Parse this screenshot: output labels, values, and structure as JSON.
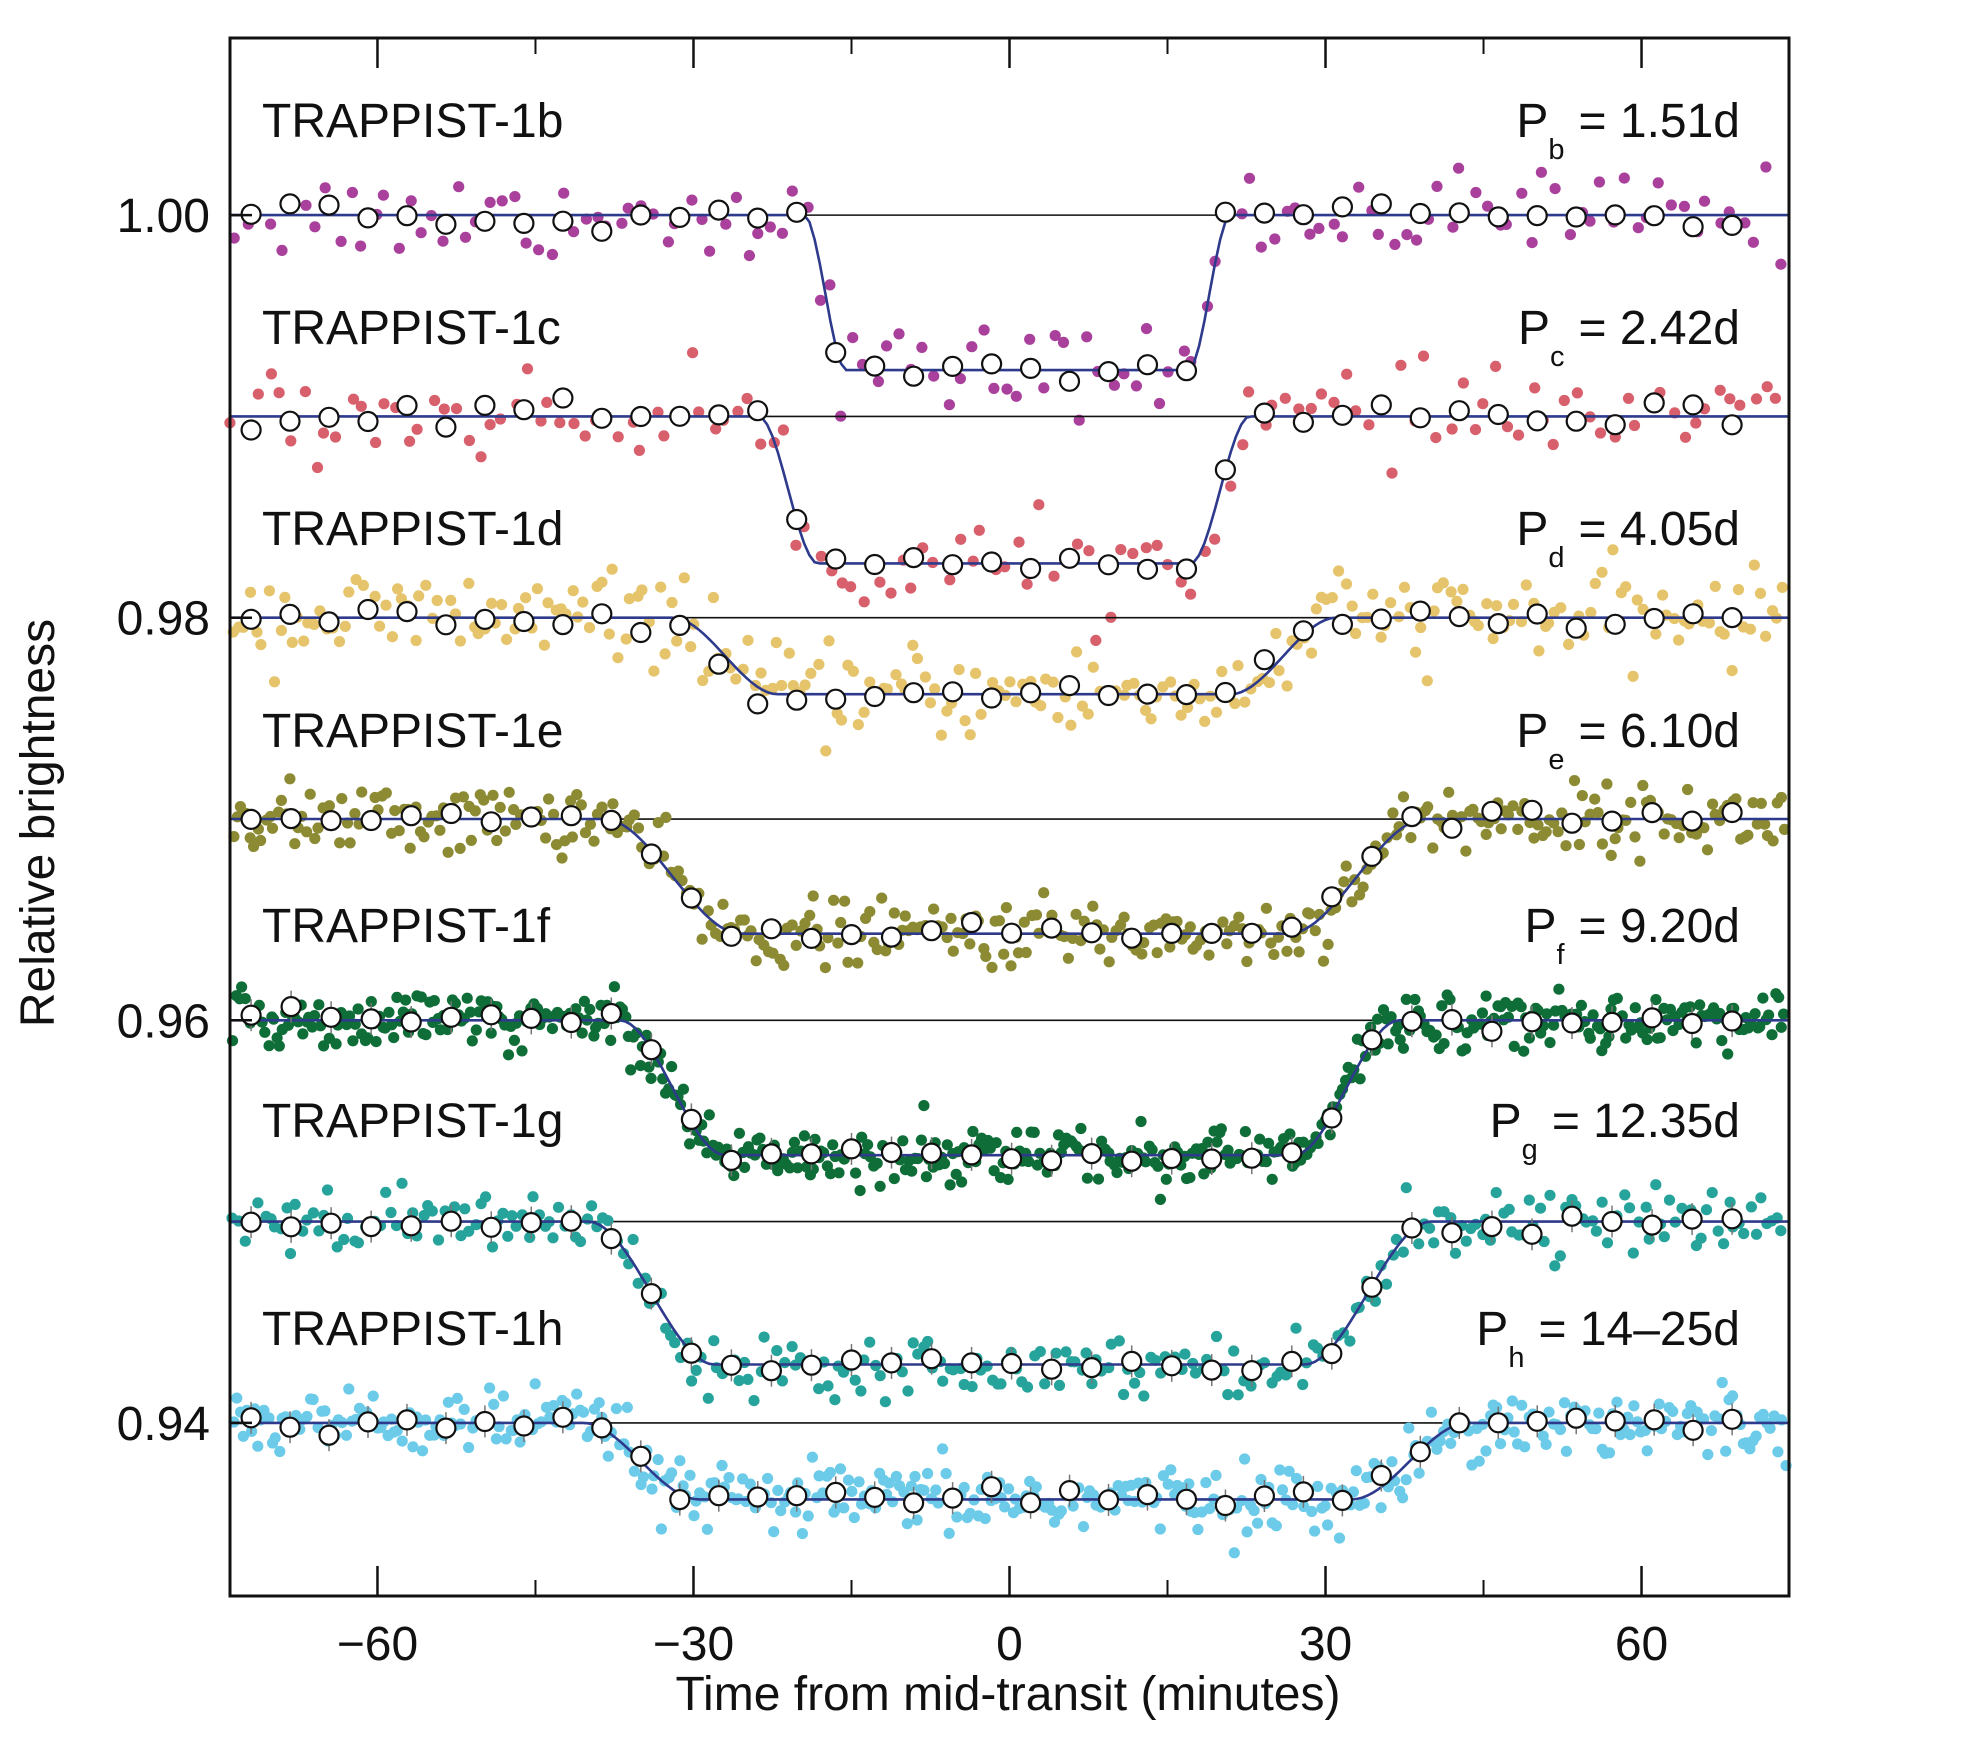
{
  "chart_data": {
    "type": "scatter",
    "xlabel": "Time from mid-transit (minutes)",
    "ylabel": "Relative brightness",
    "xlim": [
      -74,
      74
    ],
    "ylim": [
      0.9314,
      1.0088
    ],
    "x_ticks": [
      -60,
      -30,
      0,
      30,
      60
    ],
    "x_tick_labels": [
      "−60",
      "−30",
      "0",
      "30",
      "60"
    ],
    "y_ticks": [
      1.0,
      0.98,
      0.96,
      0.94
    ],
    "y_tick_labels": [
      "1.00",
      "0.98",
      "0.96",
      "0.94"
    ],
    "grid": false,
    "series": [
      {
        "name": "TRAPPIST-1b",
        "period": {
          "sym": "P",
          "sub": "b",
          "val": "= 1.51d"
        },
        "baseline": 1.0,
        "depth": 0.0077,
        "t1": 17.5,
        "t4": 19.0,
        "ingress": 2.0,
        "color": "#a8409c",
        "noise": 0.0011,
        "density": 0.9,
        "binstep": 3.7
      },
      {
        "name": "TRAPPIST-1c",
        "period": {
          "sym": "P",
          "sub": "c",
          "val": "= 2.42d"
        },
        "baseline": 0.99,
        "depth": 0.0073,
        "t1": 21.0,
        "t4": 20.0,
        "ingress": 2.8,
        "color": "#d85f6c",
        "noise": 0.0011,
        "density": 0.9,
        "binstep": 3.7
      },
      {
        "name": "TRAPPIST-1d",
        "period": {
          "sym": "P",
          "sub": "d",
          "val": "= 4.05d"
        },
        "baseline": 0.98,
        "depth": 0.0038,
        "t1": 27.0,
        "t4": 26.0,
        "ingress": 5.0,
        "color": "#e5c46b",
        "noise": 0.0011,
        "density": 1.8,
        "binstep": 3.7
      },
      {
        "name": "TRAPPIST-1e",
        "period": {
          "sym": "P",
          "sub": "e",
          "val": "= 6.10d"
        },
        "baseline": 0.97,
        "depth": 0.0057,
        "t1": 32.0,
        "t4": 33.0,
        "ingress": 6.5,
        "color": "#8c8b34",
        "noise": 0.0008,
        "density": 2.6,
        "binstep": 3.8
      },
      {
        "name": "TRAPPIST-1f",
        "period": {
          "sym": "P",
          "sub": "f",
          "val": "= 9.20d"
        },
        "baseline": 0.96,
        "depth": 0.0067,
        "t1": 32.0,
        "t4": 32.0,
        "ingress": 5.0,
        "color": "#0f6e38",
        "noise": 0.0007,
        "density": 3.6,
        "binstep": 3.8
      },
      {
        "name": "TRAPPIST-1g",
        "period": {
          "sym": "P",
          "sub": "g",
          "val": "= 12.35d"
        },
        "baseline": 0.95,
        "depth": 0.0071,
        "t1": 34.0,
        "t4": 34.0,
        "ingress": 6.0,
        "color": "#26a39b",
        "noise": 0.0007,
        "density": 2.0,
        "binstep": 3.8
      },
      {
        "name": "TRAPPIST-1h",
        "period": {
          "sym": "P",
          "sub": "h",
          "val": "= 14–25d"
        },
        "baseline": 0.94,
        "depth": 0.0038,
        "t1": 35.0,
        "t4": 38.0,
        "ingress": 5.5,
        "color": "#6ccbe8",
        "noise": 0.0008,
        "density": 3.0,
        "binstep": 3.7
      }
    ]
  }
}
